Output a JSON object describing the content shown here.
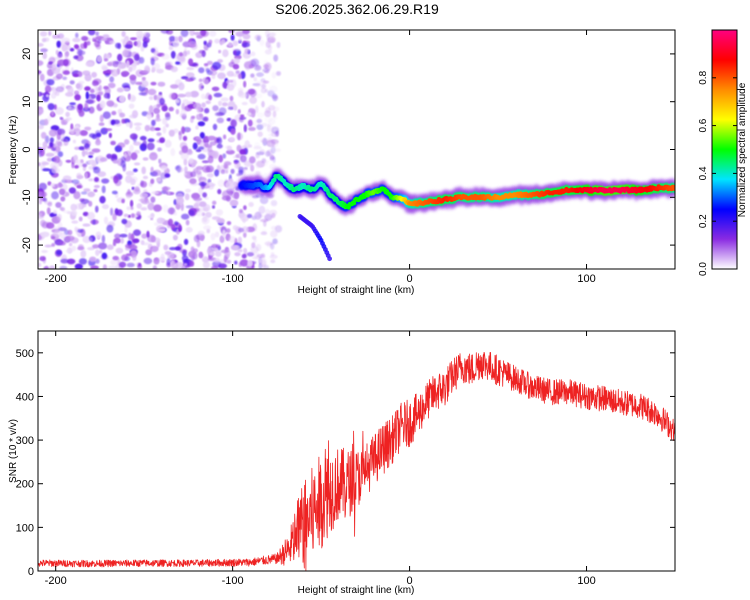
{
  "title": "S206.2025.362.06.29.R19",
  "chart_data": [
    {
      "type": "heatmap",
      "xlabel": "Height of straight line (km)",
      "ylabel": "Frequency (Hz)",
      "xlim": [
        -210,
        150
      ],
      "ylim": [
        -25,
        25
      ],
      "xticks": [
        -200,
        -100,
        0,
        100
      ],
      "yticks": [
        -20,
        -10,
        0,
        10,
        20
      ],
      "noise_region_x": [
        -210,
        -80
      ],
      "ridge": {
        "x": [
          -95,
          -85,
          -80,
          -75,
          -70,
          -65,
          -60,
          -55,
          -50,
          -45,
          -40,
          -35,
          -30,
          -25,
          -20,
          -15,
          -10,
          -5,
          0,
          10,
          20,
          30,
          40,
          50,
          60,
          70,
          80,
          90,
          100,
          110,
          120,
          130,
          140,
          150
        ],
        "freq": [
          -7.5,
          -7.5,
          -8.0,
          -5.5,
          -7.0,
          -8.5,
          -7.5,
          -8.5,
          -7.0,
          -9.5,
          -11.0,
          -12.0,
          -10.5,
          -9.5,
          -9.0,
          -8.0,
          -10.0,
          -10.0,
          -11.5,
          -11.0,
          -10.5,
          -10.0,
          -10.0,
          -10.0,
          -9.5,
          -9.5,
          -9.0,
          -8.5,
          -8.5,
          -8.5,
          -8.5,
          -8.5,
          -8.0,
          -8.0
        ],
        "amplitude": [
          0.25,
          0.3,
          0.35,
          0.45,
          0.4,
          0.45,
          0.4,
          0.45,
          0.4,
          0.45,
          0.45,
          0.5,
          0.5,
          0.5,
          0.55,
          0.5,
          0.5,
          0.6,
          0.75,
          0.8,
          0.85,
          0.8,
          0.8,
          0.75,
          0.75,
          0.8,
          0.85,
          0.85,
          0.9,
          0.95,
          0.95,
          0.9,
          0.85,
          0.8
        ]
      },
      "branch": {
        "x": [
          -62,
          -55,
          -50,
          -45
        ],
        "freq": [
          -14,
          -16,
          -19,
          -23
        ],
        "amplitude": [
          0.2,
          0.2,
          0.25,
          0.2
        ]
      },
      "colorbar": {
        "label": "Normalized spectral amplitude",
        "range": [
          0,
          1
        ],
        "ticks": [
          "0.0",
          "0.2",
          "0.4",
          "0.6",
          "0.8"
        ],
        "colors": [
          "#ffffff",
          "#8a2be2",
          "#0000ff",
          "#00e5ff",
          "#00ff00",
          "#ffff00",
          "#ff8c00",
          "#ff0000",
          "#ff0080"
        ]
      }
    },
    {
      "type": "line",
      "xlabel": "Height of straight line (km)",
      "ylabel": "SNR (10 * v/v)",
      "xlim": [
        -210,
        150
      ],
      "ylim": [
        0,
        550
      ],
      "xticks": [
        -200,
        -100,
        0,
        100
      ],
      "yticks": [
        0,
        100,
        200,
        300,
        400,
        500
      ],
      "color": "#ee2222",
      "series": [
        {
          "name": "SNR",
          "x": [
            -210,
            -180,
            -150,
            -120,
            -90,
            -75,
            -68,
            -62,
            -55,
            -50,
            -45,
            -40,
            -35,
            -30,
            -25,
            -20,
            -15,
            -10,
            -5,
            0,
            5,
            10,
            15,
            20,
            25,
            30,
            35,
            40,
            45,
            50,
            60,
            70,
            80,
            90,
            100,
            110,
            120,
            130,
            140,
            145,
            150
          ],
          "values": [
            18,
            17,
            18,
            18,
            20,
            28,
            50,
            100,
            130,
            160,
            185,
            200,
            200,
            210,
            230,
            255,
            280,
            300,
            330,
            340,
            360,
            390,
            410,
            420,
            450,
            470,
            460,
            480,
            470,
            460,
            440,
            420,
            410,
            410,
            400,
            395,
            385,
            380,
            360,
            340,
            320
          ],
          "noise": [
            8,
            8,
            8,
            8,
            9,
            12,
            40,
            90,
            110,
            110,
            100,
            85,
            80,
            70,
            60,
            60,
            60,
            55,
            55,
            55,
            50,
            45,
            45,
            45,
            40,
            40,
            40,
            40,
            35,
            35,
            30,
            30,
            30,
            30,
            30,
            30,
            30,
            30,
            30,
            30,
            25
          ]
        }
      ]
    }
  ]
}
